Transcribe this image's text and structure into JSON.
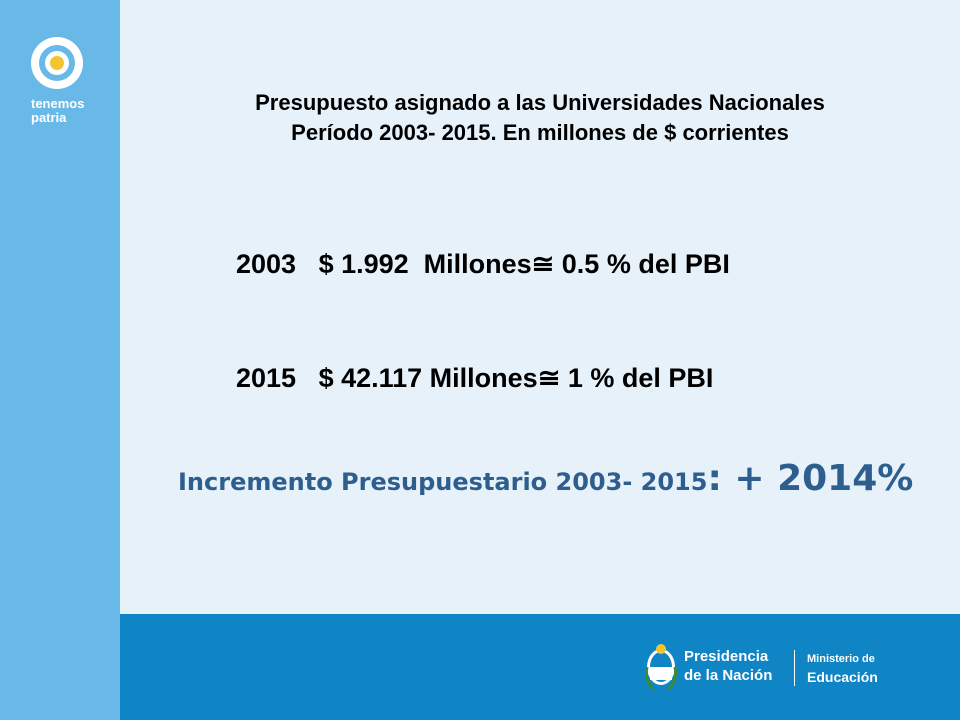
{
  "brand": {
    "logo_line1": "tenemos",
    "logo_line2": "patria",
    "colors": {
      "sidebar": "#69b9e8",
      "footer": "#0f85c6",
      "background": "#e6f1f9",
      "highlight": "#2e5e8e"
    }
  },
  "slide": {
    "title_line1": "Presupuesto asignado a las Universidades Nacionales",
    "title_line2": "Período 2003- 2015. En millones de $ corrientes",
    "rows": [
      {
        "text": "2003   $ 1.992  Millones≅ 0.5 % del PBI"
      },
      {
        "text": "2015   $ 42.117 Millones≅ 1 % del PBI"
      }
    ],
    "increment_label": "Incremento Presupuestario 2003- 2015",
    "increment_value": ": + 2014%"
  },
  "footer": {
    "presidencia_line1": "Presidencia",
    "presidencia_line2": "de la Nación",
    "ministerio_line1": "Ministerio de",
    "ministerio_line2": "Educación",
    "shield_icon": "argentina-coat-of-arms-icon"
  }
}
